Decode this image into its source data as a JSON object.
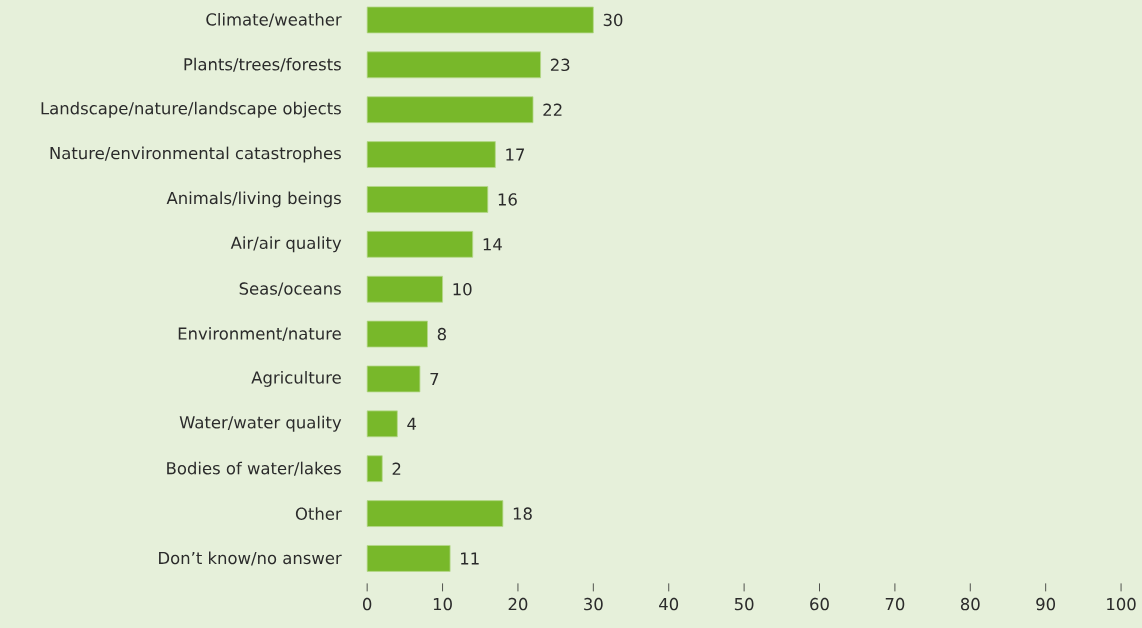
{
  "chart_data": {
    "type": "bar",
    "orientation": "horizontal",
    "categories": [
      "Climate/weather",
      "Plants/trees/forests",
      "Landscape/nature/landscape objects",
      "Nature/environmental catastrophes",
      "Animals/living beings",
      "Air/air quality",
      "Seas/oceans",
      "Environment/nature",
      "Agriculture",
      "Water/water quality",
      "Bodies of water/lakes",
      "Other",
      "Don’t know/no answer"
    ],
    "values": [
      30,
      23,
      22,
      17,
      16,
      14,
      10,
      8,
      7,
      4,
      2,
      18,
      11
    ],
    "color": "#78b82a",
    "xlim": [
      0,
      100
    ],
    "xticks": [
      0,
      10,
      20,
      30,
      40,
      50,
      60,
      70,
      80,
      90,
      100
    ],
    "data_labels": true
  }
}
